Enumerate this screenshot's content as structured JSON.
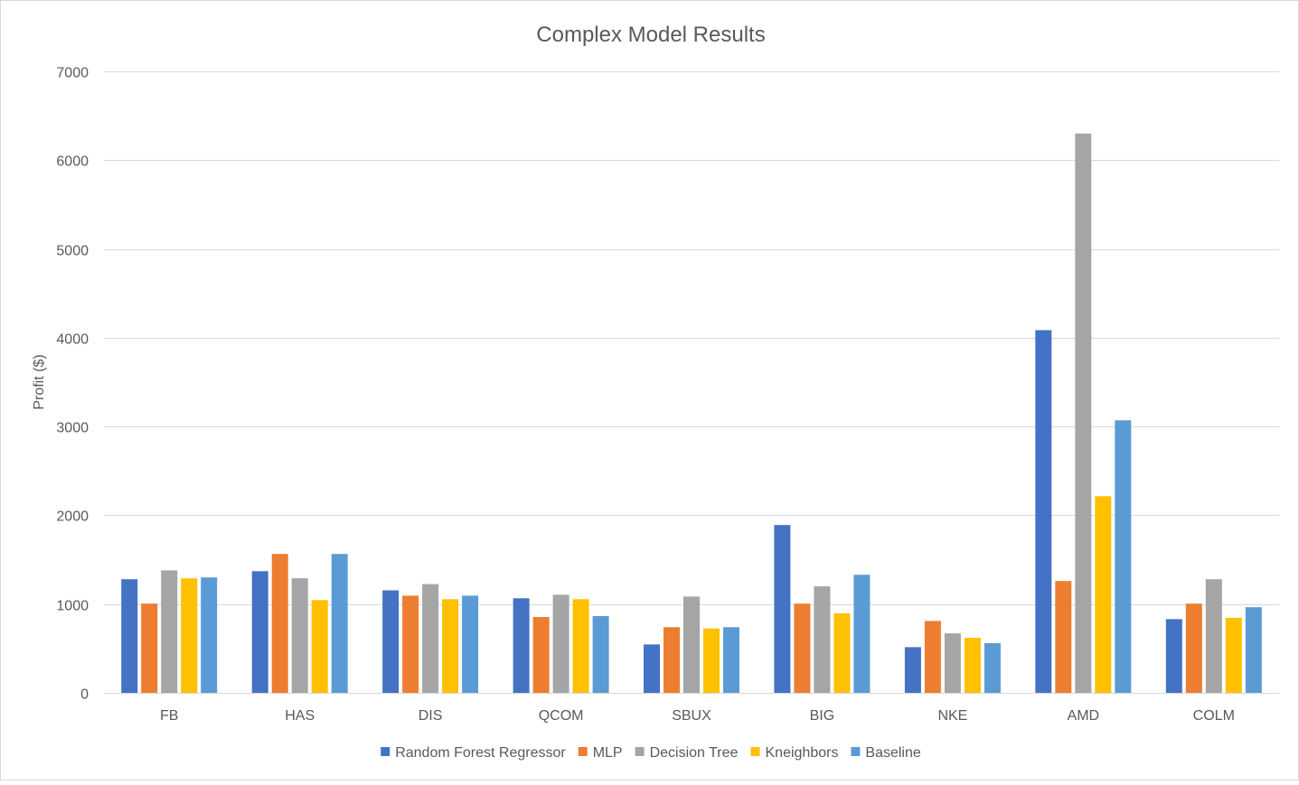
{
  "chart_data": {
    "type": "bar",
    "title": "Complex Model Results",
    "xlabel": "",
    "ylabel": "Profit ($)",
    "ylim": [
      0,
      7000
    ],
    "yticks": [
      "0",
      "1000",
      "2000",
      "3000",
      "4000",
      "5000",
      "6000",
      "7000"
    ],
    "grid": true,
    "legend_position": "bottom",
    "categories": [
      "FB",
      "HAS",
      "DIS",
      "QCOM",
      "SBUX",
      "BIG",
      "NKE",
      "AMD",
      "COLM"
    ],
    "series": [
      {
        "name": "Random Forest Regressor",
        "color": "#4472C4",
        "values": [
          1280,
          1370,
          1155,
          1065,
          545,
          1890,
          515,
          4085,
          830
        ]
      },
      {
        "name": "MLP",
        "color": "#ED7D31",
        "values": [
          1005,
          1565,
          1095,
          855,
          740,
          1005,
          810,
          1260,
          1005
        ]
      },
      {
        "name": "Decision Tree",
        "color": "#A5A5A5",
        "values": [
          1380,
          1290,
          1225,
          1105,
          1085,
          1200,
          670,
          6300,
          1280
        ]
      },
      {
        "name": "Kneighbors",
        "color": "#FFC000",
        "values": [
          1290,
          1045,
          1055,
          1055,
          725,
          895,
          620,
          2215,
          845
        ]
      },
      {
        "name": "Baseline",
        "color": "#5B9BD5",
        "values": [
          1300,
          1565,
          1095,
          865,
          740,
          1330,
          560,
          3070,
          965
        ]
      }
    ]
  }
}
